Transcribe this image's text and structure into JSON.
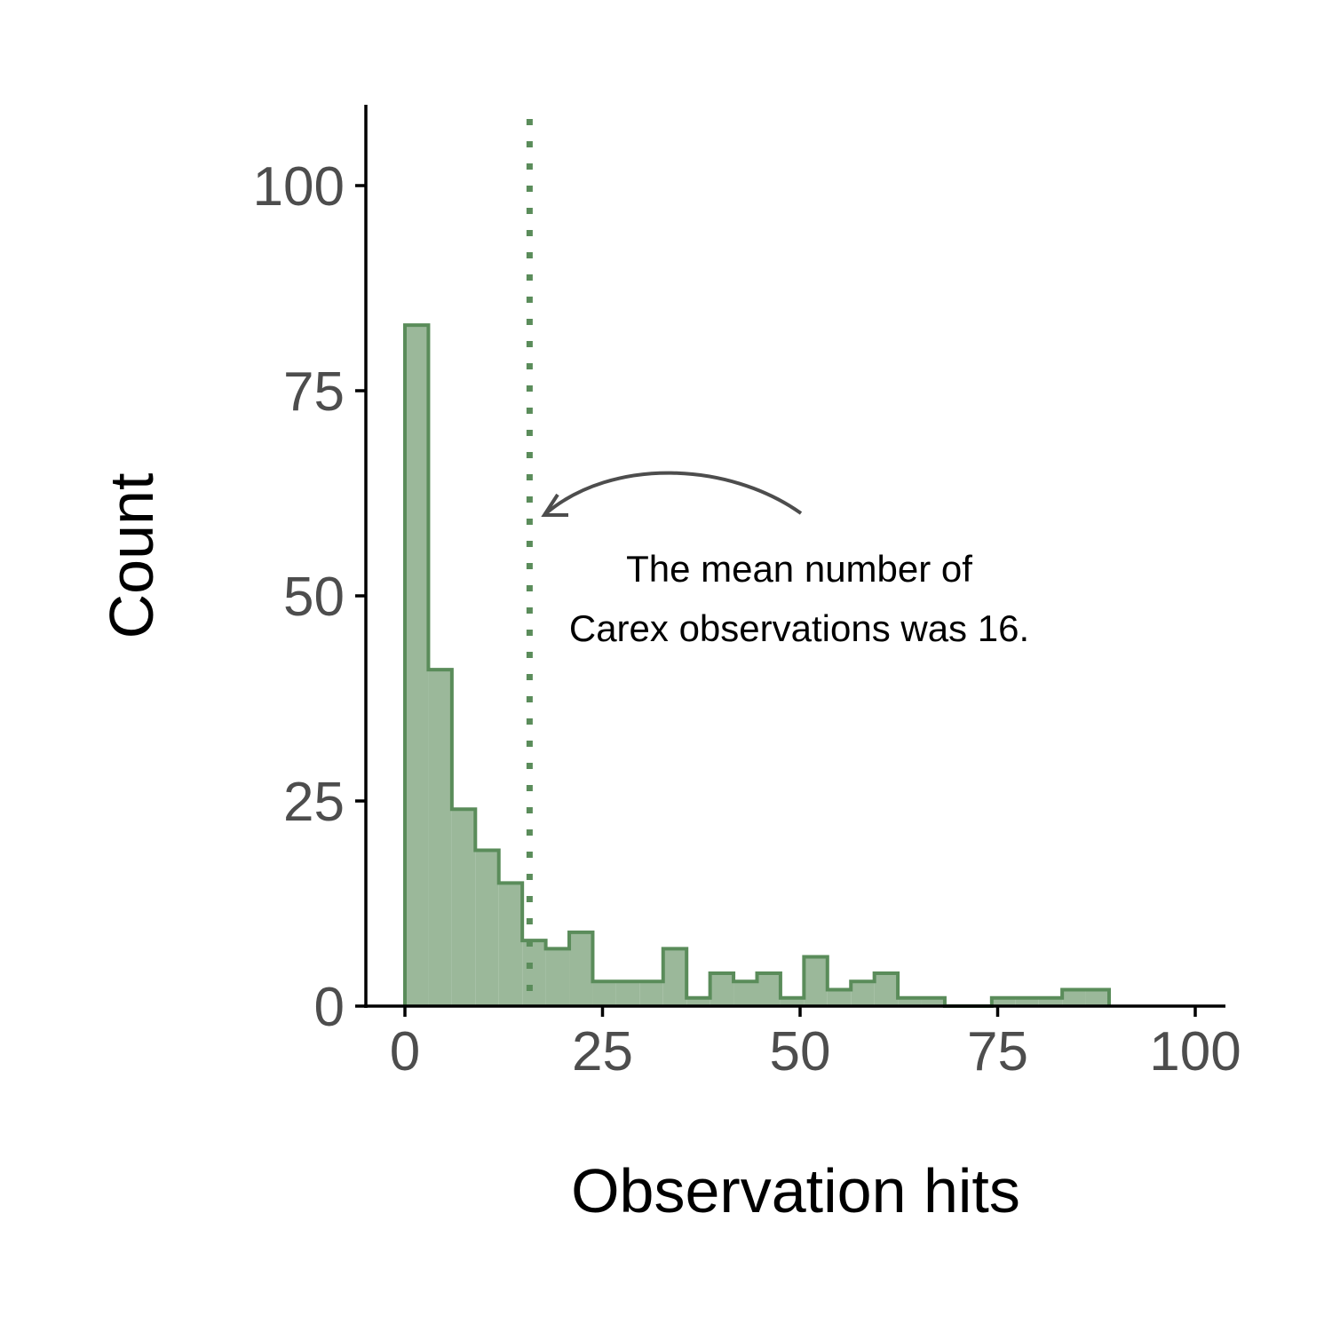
{
  "chart_data": {
    "type": "histogram",
    "xlabel": "Observation hits",
    "ylabel": "Count",
    "xlim": [
      -5,
      104
    ],
    "ylim": [
      0,
      110
    ],
    "x_ticks": [
      0,
      25,
      50,
      75,
      100
    ],
    "y_ticks": [
      0,
      25,
      50,
      75,
      100
    ],
    "bin_width": 2.97,
    "bins": [
      {
        "start": 0.0,
        "end": 2.97,
        "count": 83
      },
      {
        "start": 2.97,
        "end": 5.94,
        "count": 41
      },
      {
        "start": 5.94,
        "end": 8.91,
        "count": 24
      },
      {
        "start": 8.91,
        "end": 11.88,
        "count": 19
      },
      {
        "start": 11.88,
        "end": 14.85,
        "count": 15
      },
      {
        "start": 14.85,
        "end": 17.82,
        "count": 8
      },
      {
        "start": 17.82,
        "end": 20.79,
        "count": 7
      },
      {
        "start": 20.79,
        "end": 23.76,
        "count": 9
      },
      {
        "start": 23.76,
        "end": 26.73,
        "count": 3
      },
      {
        "start": 26.73,
        "end": 29.7,
        "count": 3
      },
      {
        "start": 29.7,
        "end": 32.67,
        "count": 3
      },
      {
        "start": 32.67,
        "end": 35.64,
        "count": 7
      },
      {
        "start": 35.64,
        "end": 38.61,
        "count": 1
      },
      {
        "start": 38.61,
        "end": 41.58,
        "count": 4
      },
      {
        "start": 41.58,
        "end": 44.55,
        "count": 3
      },
      {
        "start": 44.55,
        "end": 47.52,
        "count": 4
      },
      {
        "start": 47.52,
        "end": 50.49,
        "count": 1
      },
      {
        "start": 50.49,
        "end": 53.46,
        "count": 6
      },
      {
        "start": 53.46,
        "end": 56.43,
        "count": 2
      },
      {
        "start": 56.43,
        "end": 59.4,
        "count": 3
      },
      {
        "start": 59.4,
        "end": 62.37,
        "count": 4
      },
      {
        "start": 62.37,
        "end": 65.34,
        "count": 1
      },
      {
        "start": 65.34,
        "end": 68.31,
        "count": 1
      },
      {
        "start": 68.31,
        "end": 71.28,
        "count": 0
      },
      {
        "start": 71.28,
        "end": 74.25,
        "count": 0
      },
      {
        "start": 74.25,
        "end": 77.22,
        "count": 1
      },
      {
        "start": 77.22,
        "end": 80.19,
        "count": 1
      },
      {
        "start": 80.19,
        "end": 83.16,
        "count": 1
      },
      {
        "start": 83.16,
        "end": 86.13,
        "count": 2
      },
      {
        "start": 86.13,
        "end": 89.1,
        "count": 2
      }
    ],
    "mean_line": {
      "x": 16,
      "style": "dotted"
    },
    "annotation": {
      "lines": [
        "The mean number of",
        "Carex observations was 16."
      ],
      "arrow": true
    },
    "colors": {
      "bar_fill": "#9bb89a",
      "bar_stroke": "#5a8c5a",
      "mean_line": "#5a8c5a",
      "arrow": "#4d4d4d",
      "axis": "#000000",
      "tick_label": "#4d4d4d"
    },
    "grid": false,
    "legend": "none"
  }
}
